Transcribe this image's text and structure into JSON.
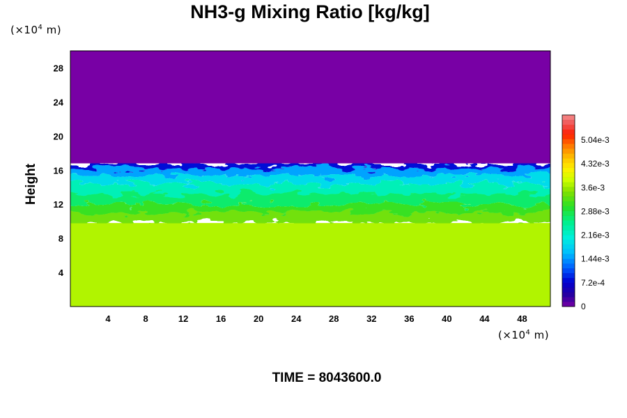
{
  "chart_data": {
    "type": "heatmap",
    "title": "NH3-g Mixing Ratio [kg/kg]",
    "xlabel": "",
    "ylabel": "Height",
    "x_unit": {
      "prefix": "(×10",
      "exp": "4",
      "suffix": " m)"
    },
    "y_unit": {
      "prefix": "(×10",
      "exp": "4",
      "suffix": " m)"
    },
    "xlim": [
      0,
      51
    ],
    "ylim": [
      0,
      30
    ],
    "x_ticks": [
      4,
      8,
      12,
      16,
      20,
      24,
      28,
      32,
      36,
      40,
      44,
      48
    ],
    "y_ticks": [
      4,
      8,
      12,
      16,
      20,
      24,
      28
    ],
    "bands": [
      {
        "from": 0,
        "to": 9.8,
        "value": 0.0037
      },
      {
        "from": 9.8,
        "to": 11,
        "value": 0.0034
      },
      {
        "from": 11,
        "to": 12,
        "value": 0.0031
      },
      {
        "from": 12,
        "to": 13.2,
        "value": 0.0027
      },
      {
        "from": 13.2,
        "to": 14.4,
        "value": 0.0023
      },
      {
        "from": 14.4,
        "to": 15.4,
        "value": 0.0019
      },
      {
        "from": 15.4,
        "to": 16.2,
        "value": 0.0015
      },
      {
        "from": 16.2,
        "to": 16.8,
        "value": 0.0008
      },
      {
        "from": 16.8,
        "to": 30,
        "value": 0.0
      }
    ],
    "colorbar": {
      "min": 0,
      "max": 0.0058,
      "tick_labels": [
        "0",
        "7.2e-4",
        "1.44e-3",
        "2.16e-3",
        "2.88e-3",
        "3.6e-3",
        "4.32e-3",
        "5.04e-3"
      ],
      "tick_values": [
        0,
        0.00072,
        0.00144,
        0.00216,
        0.00288,
        0.0036,
        0.00432,
        0.00504
      ]
    }
  },
  "time_label": "TIME = 8043600.0"
}
